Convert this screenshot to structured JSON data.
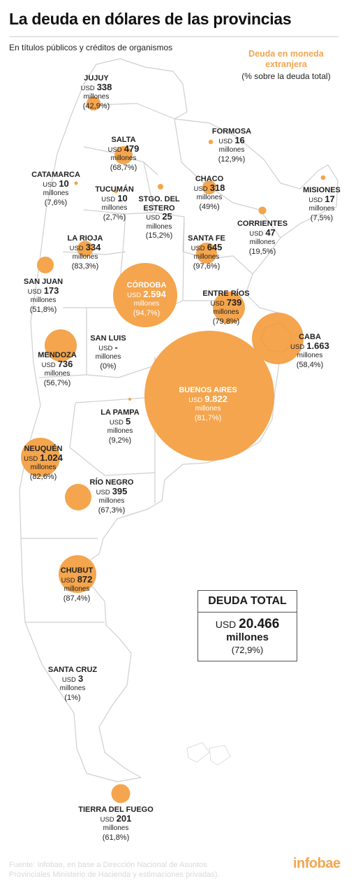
{
  "header": {
    "title": "La deuda en dólares de las provincias",
    "subtitle": "En títulos públicos y créditos de organismos"
  },
  "legend": {
    "title_line1": "Deuda en moneda",
    "title_line2": "extranjera",
    "subtitle": "(% sobre la deuda total)"
  },
  "colors": {
    "bubble": "#f4a54d",
    "border": "#cfcfcf",
    "brand": "#f4a54d"
  },
  "provinces": [
    {
      "name": "JUJUY",
      "currency": "USD",
      "amount": "338",
      "unit": "millones",
      "pct": "(42,9%)"
    },
    {
      "name": "SALTA",
      "currency": "USD",
      "amount": "479",
      "unit": "millones",
      "pct": "(68,7%)"
    },
    {
      "name": "FORMOSA",
      "currency": "USD",
      "amount": "16",
      "unit": "millones",
      "pct": "(12,9%)"
    },
    {
      "name": "CATAMARCA",
      "currency": "USD",
      "amount": "10",
      "unit": "millones",
      "pct": "(7,6%)"
    },
    {
      "name": "TUCUMÁN",
      "currency": "USD",
      "amount": "10",
      "unit": "millones",
      "pct": "(2,7%)"
    },
    {
      "name": "STGO. DEL ESTERO",
      "currency": "USD",
      "amount": "25",
      "unit": "millones",
      "pct": "(15,2%)"
    },
    {
      "name": "CHACO",
      "currency": "USD",
      "amount": "318",
      "unit": "millones",
      "pct": "(49%)"
    },
    {
      "name": "MISIONES",
      "currency": "USD",
      "amount": "17",
      "unit": "millones",
      "pct": "(7,5%)"
    },
    {
      "name": "CORRIENTES",
      "currency": "USD",
      "amount": "47",
      "unit": "millones",
      "pct": "(19,5%)"
    },
    {
      "name": "LA RIOJA",
      "currency": "USD",
      "amount": "334",
      "unit": "millones",
      "pct": "(83,3%)"
    },
    {
      "name": "SANTA FE",
      "currency": "USD",
      "amount": "645",
      "unit": "millones",
      "pct": "(97,6%)"
    },
    {
      "name": "SAN JUAN",
      "currency": "USD",
      "amount": "173",
      "unit": "millones",
      "pct": "(51,8%)"
    },
    {
      "name": "CÓRDOBA",
      "currency": "USD",
      "amount": "2.594",
      "unit": "millones",
      "pct": "(94,7%)"
    },
    {
      "name": "ENTRE RÍOS",
      "currency": "USD",
      "amount": "739",
      "unit": "millones",
      "pct": "(79,8%)"
    },
    {
      "name": "SAN LUIS",
      "currency": "USD",
      "amount": "-",
      "unit": "millones",
      "pct": "(0%)"
    },
    {
      "name": "CABA",
      "currency": "USD",
      "amount": "1.663",
      "unit": "millones",
      "pct": "(58,4%)"
    },
    {
      "name": "MENDOZA",
      "currency": "USD",
      "amount": "736",
      "unit": "millones",
      "pct": "(56,7%)"
    },
    {
      "name": "BUENOS AIRES",
      "currency": "USD",
      "amount": "9.822",
      "unit": "millones",
      "pct": "(81,7%)"
    },
    {
      "name": "LA PAMPA",
      "currency": "USD",
      "amount": "5",
      "unit": "millones",
      "pct": "(9,2%)"
    },
    {
      "name": "NEUQUÉN",
      "currency": "USD",
      "amount": "1.024",
      "unit": "millones",
      "pct": "(82,6%)"
    },
    {
      "name": "RÍO NEGRO",
      "currency": "USD",
      "amount": "395",
      "unit": "millones",
      "pct": "(67,3%)"
    },
    {
      "name": "CHUBUT",
      "currency": "USD",
      "amount": "872",
      "unit": "millones",
      "pct": "(87,4%)"
    },
    {
      "name": "SANTA CRUZ",
      "currency": "USD",
      "amount": "3",
      "unit": "millones",
      "pct": "(1%)"
    },
    {
      "name": "TIERRA DEL FUEGO",
      "currency": "USD",
      "amount": "201",
      "unit": "millones",
      "pct": "(61,8%)"
    }
  ],
  "total": {
    "heading": "DEUDA TOTAL",
    "currency": "USD",
    "amount": "20.466",
    "unit": "millones",
    "pct": "(72,9%)"
  },
  "footer": {
    "source_line1": "Fuente: Infobae, en base a Dirección Nacional de Asuntos",
    "source_line2": "Provinciales Ministerio de Hacienda y estimaciones privadas).",
    "brand": "infobae"
  }
}
